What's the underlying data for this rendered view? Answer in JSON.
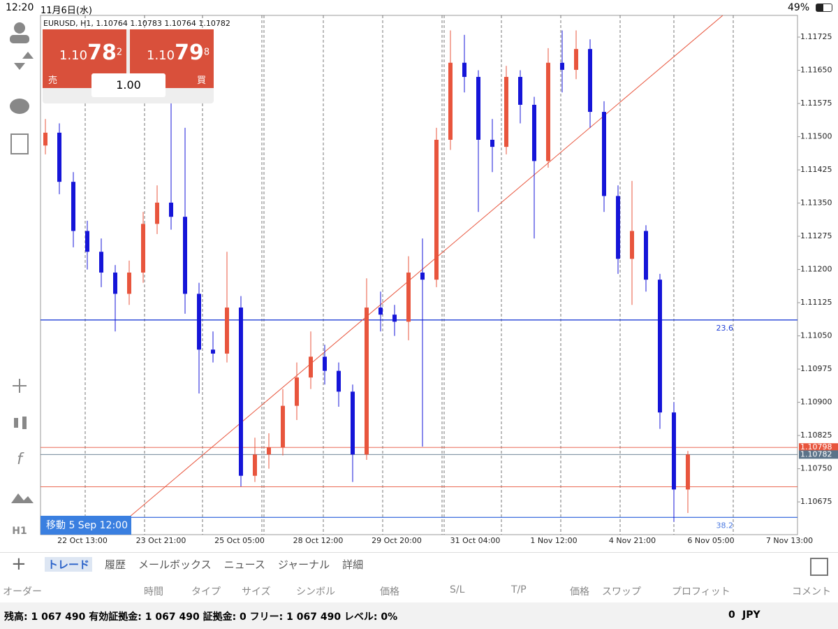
{
  "status_bar": {
    "time": "12:20",
    "date": "11月6日(水)",
    "battery": "49%"
  },
  "left_tools": {
    "timeframe": "H1"
  },
  "quote_panel": {
    "sell": {
      "prefix": "1.10",
      "big": "78",
      "small": "2",
      "label": "売"
    },
    "buy": {
      "prefix": "1.10",
      "big": "79",
      "small": "8",
      "label": "買"
    },
    "lot": "1.00"
  },
  "chart_data": {
    "type": "candlestick",
    "title": "EURUSD, H1, 1.10764 1.10783 1.10764 1.10782",
    "cursor_label": "移動 5 Sep 12:00",
    "x_labels": [
      "22 Oct 13:00",
      "23 Oct 21:00",
      "25 Oct 05:00",
      "28 Oct 12:00",
      "29 Oct 20:00",
      "31 Oct 04:00",
      "1 Nov 12:00",
      "4 Nov 21:00",
      "6 Nov 05:00",
      "7 Nov 13:00"
    ],
    "up_color": "#e8553d",
    "down_color": "#1515d8",
    "open": [
      1.1148,
      1.11509,
      1.11398,
      1.11287,
      1.1124,
      1.11193,
      1.11145,
      1.11193,
      1.11303,
      1.11351,
      1.11319,
      1.11145,
      1.11019,
      1.1101,
      1.11114,
      1.10734,
      1.10782,
      1.10798,
      1.10892,
      1.10956,
      1.11003,
      1.10971,
      1.10924,
      1.10782,
      1.11114,
      1.11098,
      1.11082,
      1.11193,
      1.11177,
      1.11493,
      1.11667,
      1.11635,
      1.11493,
      1.11477,
      1.11635,
      1.11572,
      1.11445,
      1.11667,
      1.11651,
      1.11698,
      1.11556,
      1.11366,
      1.11224,
      1.11287,
      1.11177,
      1.10877,
      1.10703
    ],
    "high": [
      1.1154,
      1.1153,
      1.1142,
      1.1131,
      1.1127,
      1.1121,
      1.1122,
      1.1133,
      1.1139,
      1.1158,
      1.1152,
      1.1117,
      1.1106,
      1.1124,
      1.1114,
      1.1082,
      1.1083,
      1.1093,
      1.1099,
      1.1106,
      1.1103,
      1.1099,
      1.1094,
      1.1118,
      1.1115,
      1.1112,
      1.1123,
      1.1127,
      1.1152,
      1.1174,
      1.1173,
      1.1165,
      1.1154,
      1.1166,
      1.1165,
      1.1159,
      1.117,
      1.1174,
      1.1174,
      1.1172,
      1.1158,
      1.1139,
      1.114,
      1.113,
      1.1119,
      1.109,
      1.1079
    ],
    "low": [
      1.1146,
      1.1137,
      1.1125,
      1.112,
      1.1116,
      1.1106,
      1.1112,
      1.1117,
      1.1128,
      1.1129,
      1.111,
      1.1092,
      1.1099,
      1.1099,
      1.1071,
      1.1072,
      1.1075,
      1.1078,
      1.1086,
      1.1093,
      1.1094,
      1.1089,
      1.1072,
      1.1077,
      1.1106,
      1.1105,
      1.1104,
      1.108,
      1.1116,
      1.1147,
      1.116,
      1.1133,
      1.1142,
      1.1146,
      1.1153,
      1.1127,
      1.1143,
      1.116,
      1.1163,
      1.1152,
      1.1133,
      1.1119,
      1.1112,
      1.1115,
      1.1084,
      1.1063,
      1.1065
    ],
    "close": [
      1.11509,
      1.11398,
      1.11287,
      1.1124,
      1.11193,
      1.11145,
      1.11193,
      1.11303,
      1.11351,
      1.11319,
      1.11145,
      1.11019,
      1.1101,
      1.11114,
      1.10734,
      1.10782,
      1.10798,
      1.10892,
      1.10956,
      1.11003,
      1.10971,
      1.10924,
      1.10782,
      1.11114,
      1.11098,
      1.11082,
      1.11193,
      1.11177,
      1.11493,
      1.11667,
      1.11635,
      1.11493,
      1.11477,
      1.11635,
      1.11572,
      1.11445,
      1.11667,
      1.11651,
      1.11698,
      1.11556,
      1.11366,
      1.11224,
      1.11287,
      1.11177,
      1.10877,
      1.10703,
      1.10782
    ],
    "ylim": [
      1.10601,
      1.11774
    ],
    "yticks": [
      1.11725,
      {
        "value": 1.1165,
        "label": "1.11650"
      },
      1.11575,
      {
        "value": 1.115,
        "label": "1.11500"
      },
      1.11425,
      {
        "value": 1.1135,
        "label": "1.11350"
      },
      1.11275,
      {
        "value": 1.112,
        "label": "1.11200"
      },
      1.11125,
      {
        "value": 1.1105,
        "label": "1.11050"
      },
      1.10975,
      {
        "value": 1.109,
        "label": "1.10900"
      },
      1.10825,
      {
        "value": 1.1075,
        "label": "1.10750"
      },
      1.10675
    ],
    "levels": [
      {
        "value": 1.11086,
        "color": "#1f3fd6",
        "label": "23.6"
      },
      {
        "value": 1.10798,
        "color": "#e8553d",
        "tag": true
      },
      {
        "value": 1.10782,
        "color": "#5b7389",
        "tag": true
      },
      {
        "value": 1.10709,
        "color": "#e8553d"
      },
      {
        "value": 1.1064,
        "color": "#4a78e0",
        "label": "38.2"
      }
    ]
  },
  "tabs": [
    "トレード",
    "履歴",
    "メールボックス",
    "ニュース",
    "ジャーナル",
    "詳細"
  ],
  "columns": [
    "オーダー",
    "時間",
    "タイプ",
    "サイズ",
    "シンボル",
    "価格",
    "S/L",
    "T/P",
    "価格",
    "スワップ",
    "プロフィット",
    "コメント"
  ],
  "footer": {
    "summary": "残高: 1 067 490 有効証拠金: 1 067 490 証拠金: 0 フリー: 1 067 490 レベル: 0%",
    "profit": "0",
    "currency": "JPY"
  }
}
